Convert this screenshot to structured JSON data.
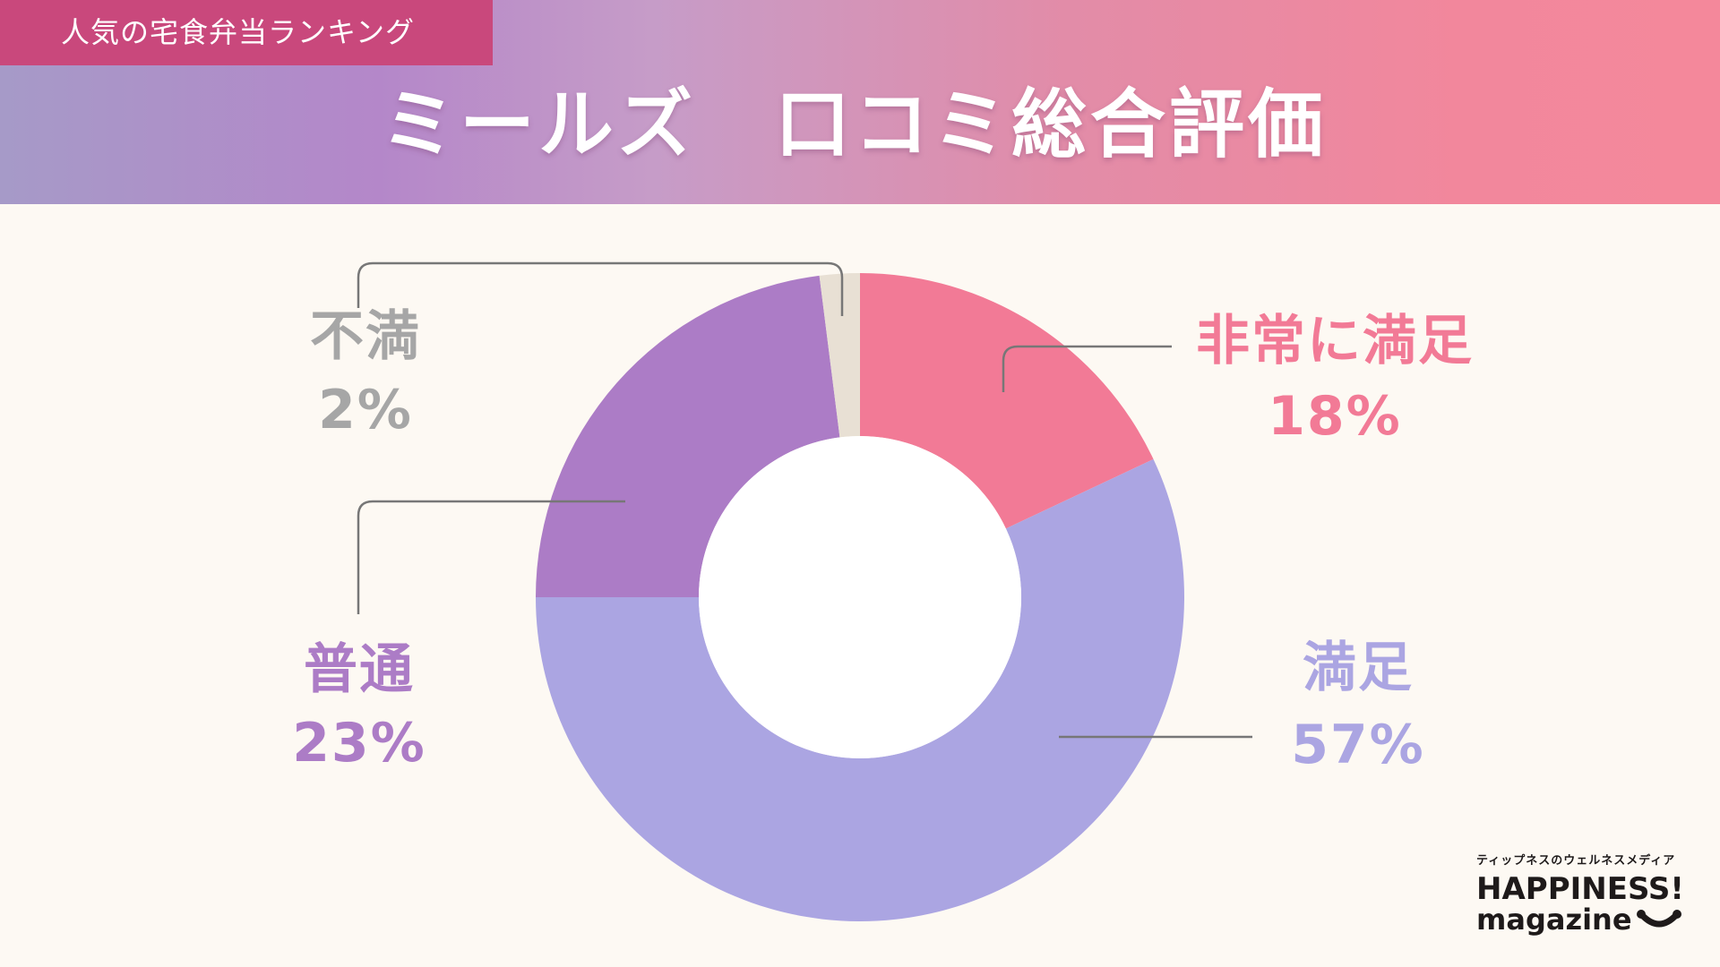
{
  "header": {
    "tag": "人気の宅食弁当ランキング",
    "title": "ミールズ　口コミ総合評価"
  },
  "labels": {
    "very_satisfied": {
      "name": "非常に満足",
      "value": "18%",
      "color": "#f27a96"
    },
    "satisfied": {
      "name": "満足",
      "value": "57%",
      "color": "#aba5e2"
    },
    "neutral": {
      "name": "普通",
      "value": "23%",
      "color": "#ac7cc6"
    },
    "dissatisfied": {
      "name": "不満",
      "value": "2%",
      "color": "#a6a6a6"
    }
  },
  "logo": {
    "tagline": "ティップネスのウェルネスメディア",
    "line1": "HAPPINESS!",
    "line2": "magazine"
  },
  "colors": {
    "background": "#fdf9f3",
    "tag_bg": "#c9487c",
    "slice_very_satisfied": "#f27a96",
    "slice_satisfied": "#aba5e2",
    "slice_neutral": "#ac7cc6",
    "slice_dissatisfied": "#e8e0d4",
    "leader_line": "#777777"
  },
  "chart_data": {
    "type": "pie",
    "subtype": "donut",
    "title": "ミールズ　口コミ総合評価",
    "categories": [
      "非常に満足",
      "満足",
      "普通",
      "不満"
    ],
    "values": [
      18,
      57,
      23,
      2
    ],
    "unit": "%",
    "colors": [
      "#f27a96",
      "#aba5e2",
      "#ac7cc6",
      "#e8e0d4"
    ],
    "start_angle": "12 o'clock, clockwise",
    "legend": "none (callout labels with leader lines)"
  }
}
